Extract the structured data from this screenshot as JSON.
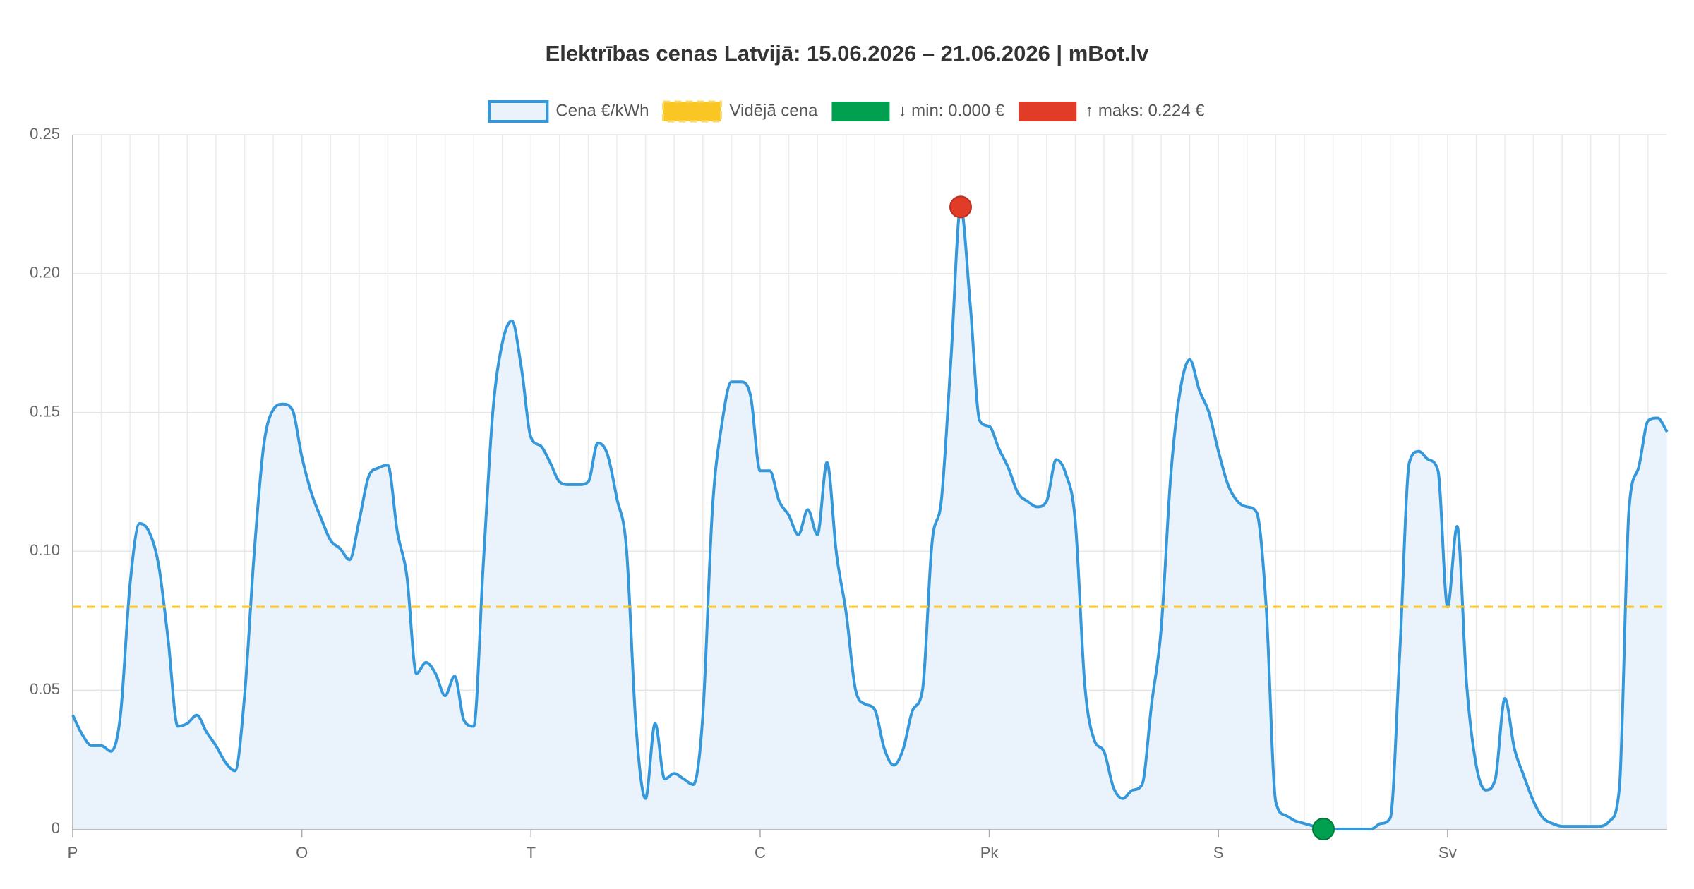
{
  "chart_data": {
    "type": "line",
    "title": "Elektrības cenas Latvijā: 15.06.2026 – 21.06.2026 | mBot.lv",
    "categories": [
      "P",
      null,
      null,
      null,
      null,
      null,
      null,
      null,
      null,
      null,
      null,
      null,
      null,
      null,
      null,
      null,
      null,
      null,
      null,
      null,
      null,
      null,
      null,
      null,
      "O",
      null,
      null,
      null,
      null,
      null,
      null,
      null,
      null,
      null,
      null,
      null,
      null,
      null,
      null,
      null,
      null,
      null,
      null,
      null,
      null,
      null,
      null,
      null,
      "T",
      null,
      null,
      null,
      null,
      null,
      null,
      null,
      null,
      null,
      null,
      null,
      null,
      null,
      null,
      null,
      null,
      null,
      null,
      null,
      null,
      null,
      null,
      null,
      "C",
      null,
      null,
      null,
      null,
      null,
      null,
      null,
      null,
      null,
      null,
      null,
      null,
      null,
      null,
      null,
      null,
      null,
      null,
      null,
      null,
      null,
      null,
      null,
      "Pk",
      null,
      null,
      null,
      null,
      null,
      null,
      null,
      null,
      null,
      null,
      null,
      null,
      null,
      null,
      null,
      null,
      null,
      null,
      null,
      null,
      null,
      null,
      null,
      "S",
      null,
      null,
      null,
      null,
      null,
      null,
      null,
      null,
      null,
      null,
      null,
      null,
      null,
      null,
      null,
      null,
      null,
      null,
      null,
      null,
      null,
      null,
      null,
      "Sv",
      null,
      null,
      null,
      null,
      null,
      null,
      null,
      null,
      null,
      null,
      null,
      null,
      null,
      null,
      null,
      null,
      null,
      null,
      null,
      null,
      null,
      null,
      null
    ],
    "series": [
      {
        "name": "Cena €/kWh",
        "color": "#3498db",
        "fill": "#eaf3fb",
        "values": [
          0.041,
          0.034,
          0.03,
          0.03,
          0.028,
          0.041,
          0.088,
          0.11,
          0.107,
          0.095,
          0.068,
          0.037,
          0.038,
          0.041,
          0.035,
          0.03,
          0.024,
          0.021,
          0.048,
          0.099,
          0.138,
          0.151,
          0.153,
          0.151,
          0.134,
          0.121,
          0.112,
          0.104,
          0.101,
          0.097,
          0.111,
          0.127,
          0.13,
          0.131,
          0.107,
          0.091,
          0.056,
          0.06,
          0.056,
          0.048,
          0.055,
          0.039,
          0.037,
          0.095,
          0.15,
          0.175,
          0.183,
          0.166,
          0.141,
          0.138,
          0.132,
          0.125,
          0.124,
          0.124,
          0.125,
          0.139,
          0.135,
          0.119,
          0.101,
          0.037,
          0.011,
          0.038,
          0.018,
          0.02,
          0.018,
          0.016,
          0.041,
          0.115,
          0.146,
          0.161,
          0.161,
          0.156,
          0.129,
          0.129,
          0.118,
          0.113,
          0.106,
          0.115,
          0.106,
          0.132,
          0.099,
          0.078,
          0.05,
          0.045,
          0.043,
          0.029,
          0.023,
          0.029,
          0.043,
          0.05,
          0.103,
          0.119,
          0.17,
          0.224,
          0.189,
          0.147,
          0.145,
          0.137,
          0.13,
          0.121,
          0.118,
          0.116,
          0.118,
          0.133,
          0.128,
          0.111,
          0.052,
          0.032,
          0.028,
          0.015,
          0.011,
          0.014,
          0.016,
          0.045,
          0.072,
          0.127,
          0.158,
          0.169,
          0.158,
          0.15,
          0.136,
          0.124,
          0.118,
          0.116,
          0.114,
          0.08,
          0.01,
          0.005,
          0.003,
          0.002,
          0.001,
          0,
          0,
          0,
          0,
          0,
          0,
          0.002,
          0.004,
          0.064,
          0.132,
          0.136,
          0.133,
          0.129,
          0.08,
          0.109,
          0.052,
          0.023,
          0.014,
          0.018,
          0.047,
          0.029,
          0.019,
          0.01,
          0.004,
          0.002,
          0.001,
          0.001,
          0.001,
          0.001,
          0.001,
          0.003,
          0.015,
          0.115,
          0.13,
          0.147,
          0.148,
          0.143
        ]
      }
    ],
    "average": {
      "name": "Vidējā cena",
      "value": 0.08,
      "color": "#f9c623"
    },
    "min_label": "↓ min: 0.000 €",
    "min_color": "#00a050",
    "max_label": "↑ maks: 0.224 €",
    "max_color": "#e03c28",
    "ylim": [
      0,
      0.25
    ],
    "yticks": [
      0,
      0.05,
      {
        "value": 0.1,
        "label": "0.10"
      },
      0.15,
      {
        "value": 0.2,
        "label": "0.20"
      },
      0.25
    ],
    "grid": true
  }
}
